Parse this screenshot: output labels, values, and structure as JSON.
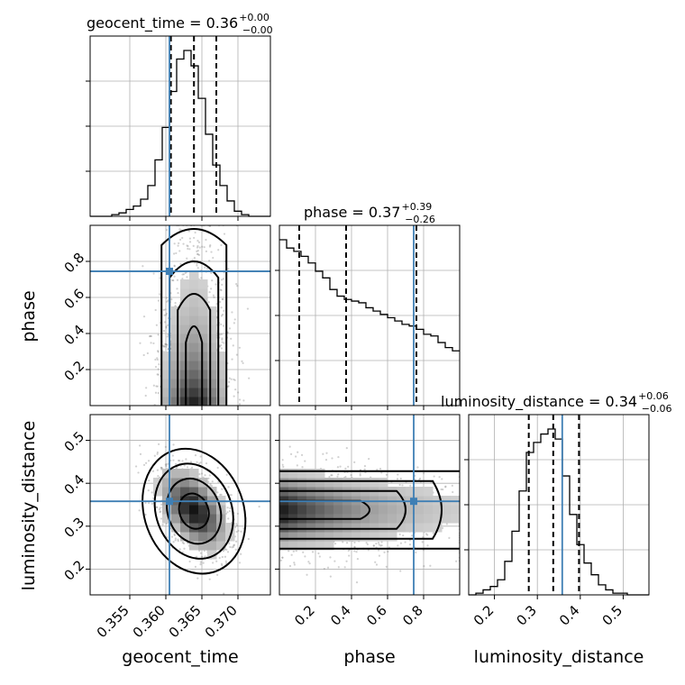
{
  "chart_data": {
    "type": "corner",
    "parameters": [
      "geocent_time",
      "phase",
      "luminosity_distance"
    ],
    "truths": {
      "geocent_time": 0.3605,
      "phase": 0.745,
      "luminosity_distance": 0.358
    },
    "colors": {
      "truth": "#3f7fb4",
      "lines": "#000000",
      "grid": "#b0b0b0"
    },
    "titles": [
      {
        "param": "geocent_time",
        "text": "geocent_time = 0.36",
        "plus": "+0.00",
        "minus": "−0.00"
      },
      {
        "param": "phase",
        "text": "phase = 0.37",
        "plus": "+0.39",
        "minus": "−0.26"
      },
      {
        "param": "luminosity_distance",
        "text": "luminosity_distance = 0.34",
        "plus": "+0.06",
        "minus": "−0.06"
      }
    ],
    "axis_labels": {
      "x": [
        "geocent_time",
        "phase",
        "luminosity_distance"
      ],
      "y": [
        "phase",
        "luminosity_distance"
      ]
    },
    "ranges": {
      "geocent_time": [
        0.3495,
        0.3745
      ],
      "phase": [
        0.0,
        1.0
      ],
      "luminosity_distance": [
        0.14,
        0.56
      ]
    },
    "ticks": {
      "geocent_time": {
        "values": [
          0.355,
          0.36,
          0.365,
          0.37
        ],
        "labels": [
          "0.355",
          "0.360",
          "0.365",
          "0.370"
        ]
      },
      "phase": {
        "values": [
          0.2,
          0.4,
          0.6,
          0.8
        ],
        "labels": [
          "0.2",
          "0.4",
          "0.6",
          "0.8"
        ]
      },
      "luminosity_distance": {
        "values": [
          0.2,
          0.3,
          0.4,
          0.5
        ],
        "labels": [
          "0.2",
          "0.3",
          "0.4",
          "0.5"
        ]
      }
    },
    "quantiles": {
      "geocent_time": [
        0.3607,
        0.3639,
        0.367
      ],
      "phase": [
        0.11,
        0.37,
        0.76
      ],
      "luminosity_distance": [
        0.28,
        0.337,
        0.397
      ]
    },
    "histograms": {
      "geocent_time": [
        0,
        0,
        0,
        1,
        2,
        4,
        6,
        10,
        18,
        33,
        52,
        73,
        92,
        97,
        88,
        69,
        48,
        30,
        18,
        9,
        3,
        1,
        0,
        0,
        0
      ],
      "phase": [
        100,
        95,
        93,
        90,
        86,
        81,
        77,
        70,
        66,
        64,
        63,
        62,
        59,
        57,
        55,
        53,
        51,
        49,
        48,
        46,
        43,
        42,
        38,
        35,
        33
      ],
      "luminosity_distance": [
        0,
        1,
        3,
        5,
        9,
        20,
        38,
        62,
        85,
        91,
        96,
        99,
        93,
        71,
        48,
        30,
        19,
        12,
        6,
        3,
        1,
        1,
        0,
        0,
        0
      ]
    },
    "grid": "on",
    "grid_color": "#b0b0b0"
  }
}
